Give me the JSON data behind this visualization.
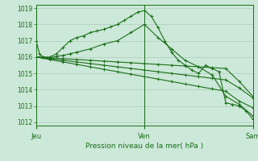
{
  "background_color": "#cce8d8",
  "grid_color": "#aaccbb",
  "line_color": "#1a6e1a",
  "marker_color": "#1a6e1a",
  "xlabel": "Pression niveau de la mer( hPa )",
  "xlabel_color": "#1a6e1a",
  "tick_color": "#1a6e1a",
  "xtick_labels": [
    "Jeu",
    "Ven",
    "Sam"
  ],
  "xtick_positions": [
    0,
    16,
    32
  ],
  "ylim": [
    1011.8,
    1019.2
  ],
  "yticks": [
    1012,
    1013,
    1014,
    1015,
    1016,
    1017,
    1018,
    1019
  ],
  "line1_x": [
    0,
    0.5,
    1,
    2,
    3,
    4,
    5,
    6,
    7,
    8,
    9,
    10,
    11,
    12,
    13,
    14,
    15,
    16,
    17,
    18,
    19,
    20,
    21,
    22,
    23,
    24,
    25,
    26,
    27,
    28,
    29,
    30,
    31,
    32
  ],
  "line1_y": [
    1017.0,
    1016.2,
    1016.0,
    1016.0,
    1016.2,
    1016.6,
    1017.0,
    1017.2,
    1017.3,
    1017.5,
    1017.6,
    1017.7,
    1017.85,
    1018.0,
    1018.25,
    1018.5,
    1018.75,
    1018.85,
    1018.5,
    1017.8,
    1017.0,
    1016.3,
    1015.8,
    1015.5,
    1015.2,
    1015.0,
    1015.5,
    1015.3,
    1015.1,
    1013.2,
    1013.1,
    1013.0,
    1012.7,
    1012.2
  ],
  "line2_x": [
    0,
    1,
    2,
    3,
    4,
    5,
    6,
    8,
    10,
    12,
    14,
    16,
    18,
    20,
    22,
    24,
    26,
    28,
    30,
    32
  ],
  "line2_y": [
    1016.0,
    1016.0,
    1015.95,
    1016.05,
    1016.1,
    1016.2,
    1016.3,
    1016.5,
    1016.8,
    1017.0,
    1017.5,
    1018.0,
    1017.2,
    1016.5,
    1015.8,
    1015.4,
    1014.9,
    1013.6,
    1013.1,
    1012.4
  ],
  "line3_x": [
    0,
    2,
    4,
    6,
    8,
    10,
    12,
    14,
    16,
    18,
    20,
    22,
    24,
    26,
    28,
    30,
    32
  ],
  "line3_y": [
    1016.0,
    1015.85,
    1015.7,
    1015.55,
    1015.4,
    1015.25,
    1015.1,
    1014.95,
    1014.8,
    1014.65,
    1014.5,
    1014.35,
    1014.2,
    1014.05,
    1013.9,
    1013.3,
    1012.9
  ],
  "line4_x": [
    0,
    2,
    4,
    6,
    8,
    10,
    12,
    14,
    16,
    18,
    20,
    22,
    24,
    26,
    28,
    30,
    32
  ],
  "line4_y": [
    1016.0,
    1015.9,
    1015.8,
    1015.7,
    1015.6,
    1015.5,
    1015.4,
    1015.3,
    1015.2,
    1015.1,
    1015.0,
    1014.9,
    1014.8,
    1014.7,
    1014.6,
    1014.1,
    1013.5
  ],
  "line5_x": [
    0,
    2,
    4,
    6,
    8,
    10,
    12,
    14,
    16,
    18,
    20,
    22,
    24,
    26,
    28,
    30,
    32
  ],
  "line5_y": [
    1016.0,
    1015.95,
    1015.9,
    1015.85,
    1015.8,
    1015.75,
    1015.7,
    1015.65,
    1015.6,
    1015.55,
    1015.5,
    1015.45,
    1015.4,
    1015.35,
    1015.3,
    1014.5,
    1013.6
  ]
}
